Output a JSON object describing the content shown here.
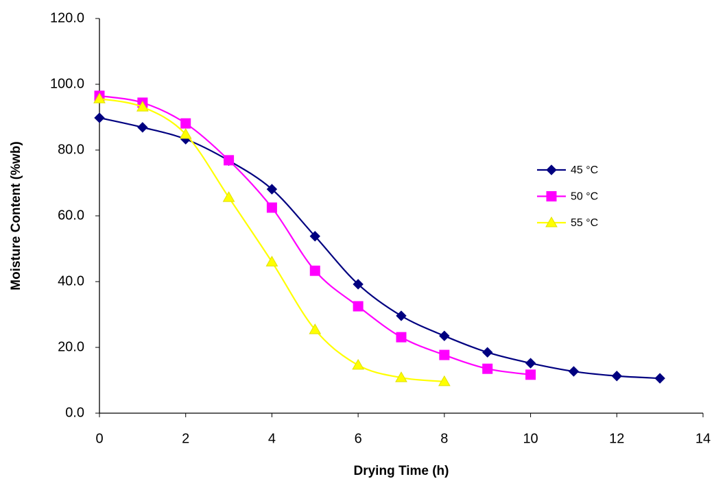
{
  "chart_data": {
    "type": "line",
    "x_label": "Drying Time (h)",
    "y_label": "Moisture Content (%wb)",
    "x": [
      0,
      1,
      2,
      3,
      4,
      5,
      6,
      7,
      8,
      9,
      10,
      11,
      12,
      13
    ],
    "series": [
      {
        "name": "45 °C",
        "color": "#000080",
        "marker": "diamond",
        "values": [
          89.8,
          86.9,
          83.3,
          76.8,
          68.1,
          53.8,
          39.2,
          29.6,
          23.5,
          18.5,
          15.2,
          12.7,
          11.3,
          10.6
        ]
      },
      {
        "name": "50 °C",
        "color": "#ff00ff",
        "marker": "square",
        "values": [
          96.5,
          94.4,
          88.1,
          76.9,
          62.5,
          43.3,
          32.5,
          23.1,
          17.7,
          13.5,
          11.7,
          null,
          null,
          null
        ]
      },
      {
        "name": "55 °C",
        "color": "#ffff00",
        "marker": "triangle",
        "values": [
          95.6,
          93.1,
          84.8,
          65.6,
          46.0,
          25.4,
          14.6,
          10.8,
          9.6,
          null,
          null,
          null,
          null,
          null
        ]
      }
    ],
    "xlim": [
      0,
      14
    ],
    "xticks": [
      0,
      2,
      4,
      6,
      8,
      10,
      12,
      14
    ],
    "ylim": [
      0,
      120
    ],
    "yticks": [
      {
        "value": 0,
        "label": "0.0"
      },
      {
        "value": 20,
        "label": "20.0"
      },
      {
        "value": 40,
        "label": "40.0"
      },
      {
        "value": 60,
        "label": "60.0"
      },
      {
        "value": 80,
        "label": "80.0"
      },
      {
        "value": 100,
        "label": "100.0"
      },
      {
        "value": 120,
        "label": "120.0"
      }
    ],
    "grid": false,
    "smooth": true,
    "legend": "right"
  }
}
